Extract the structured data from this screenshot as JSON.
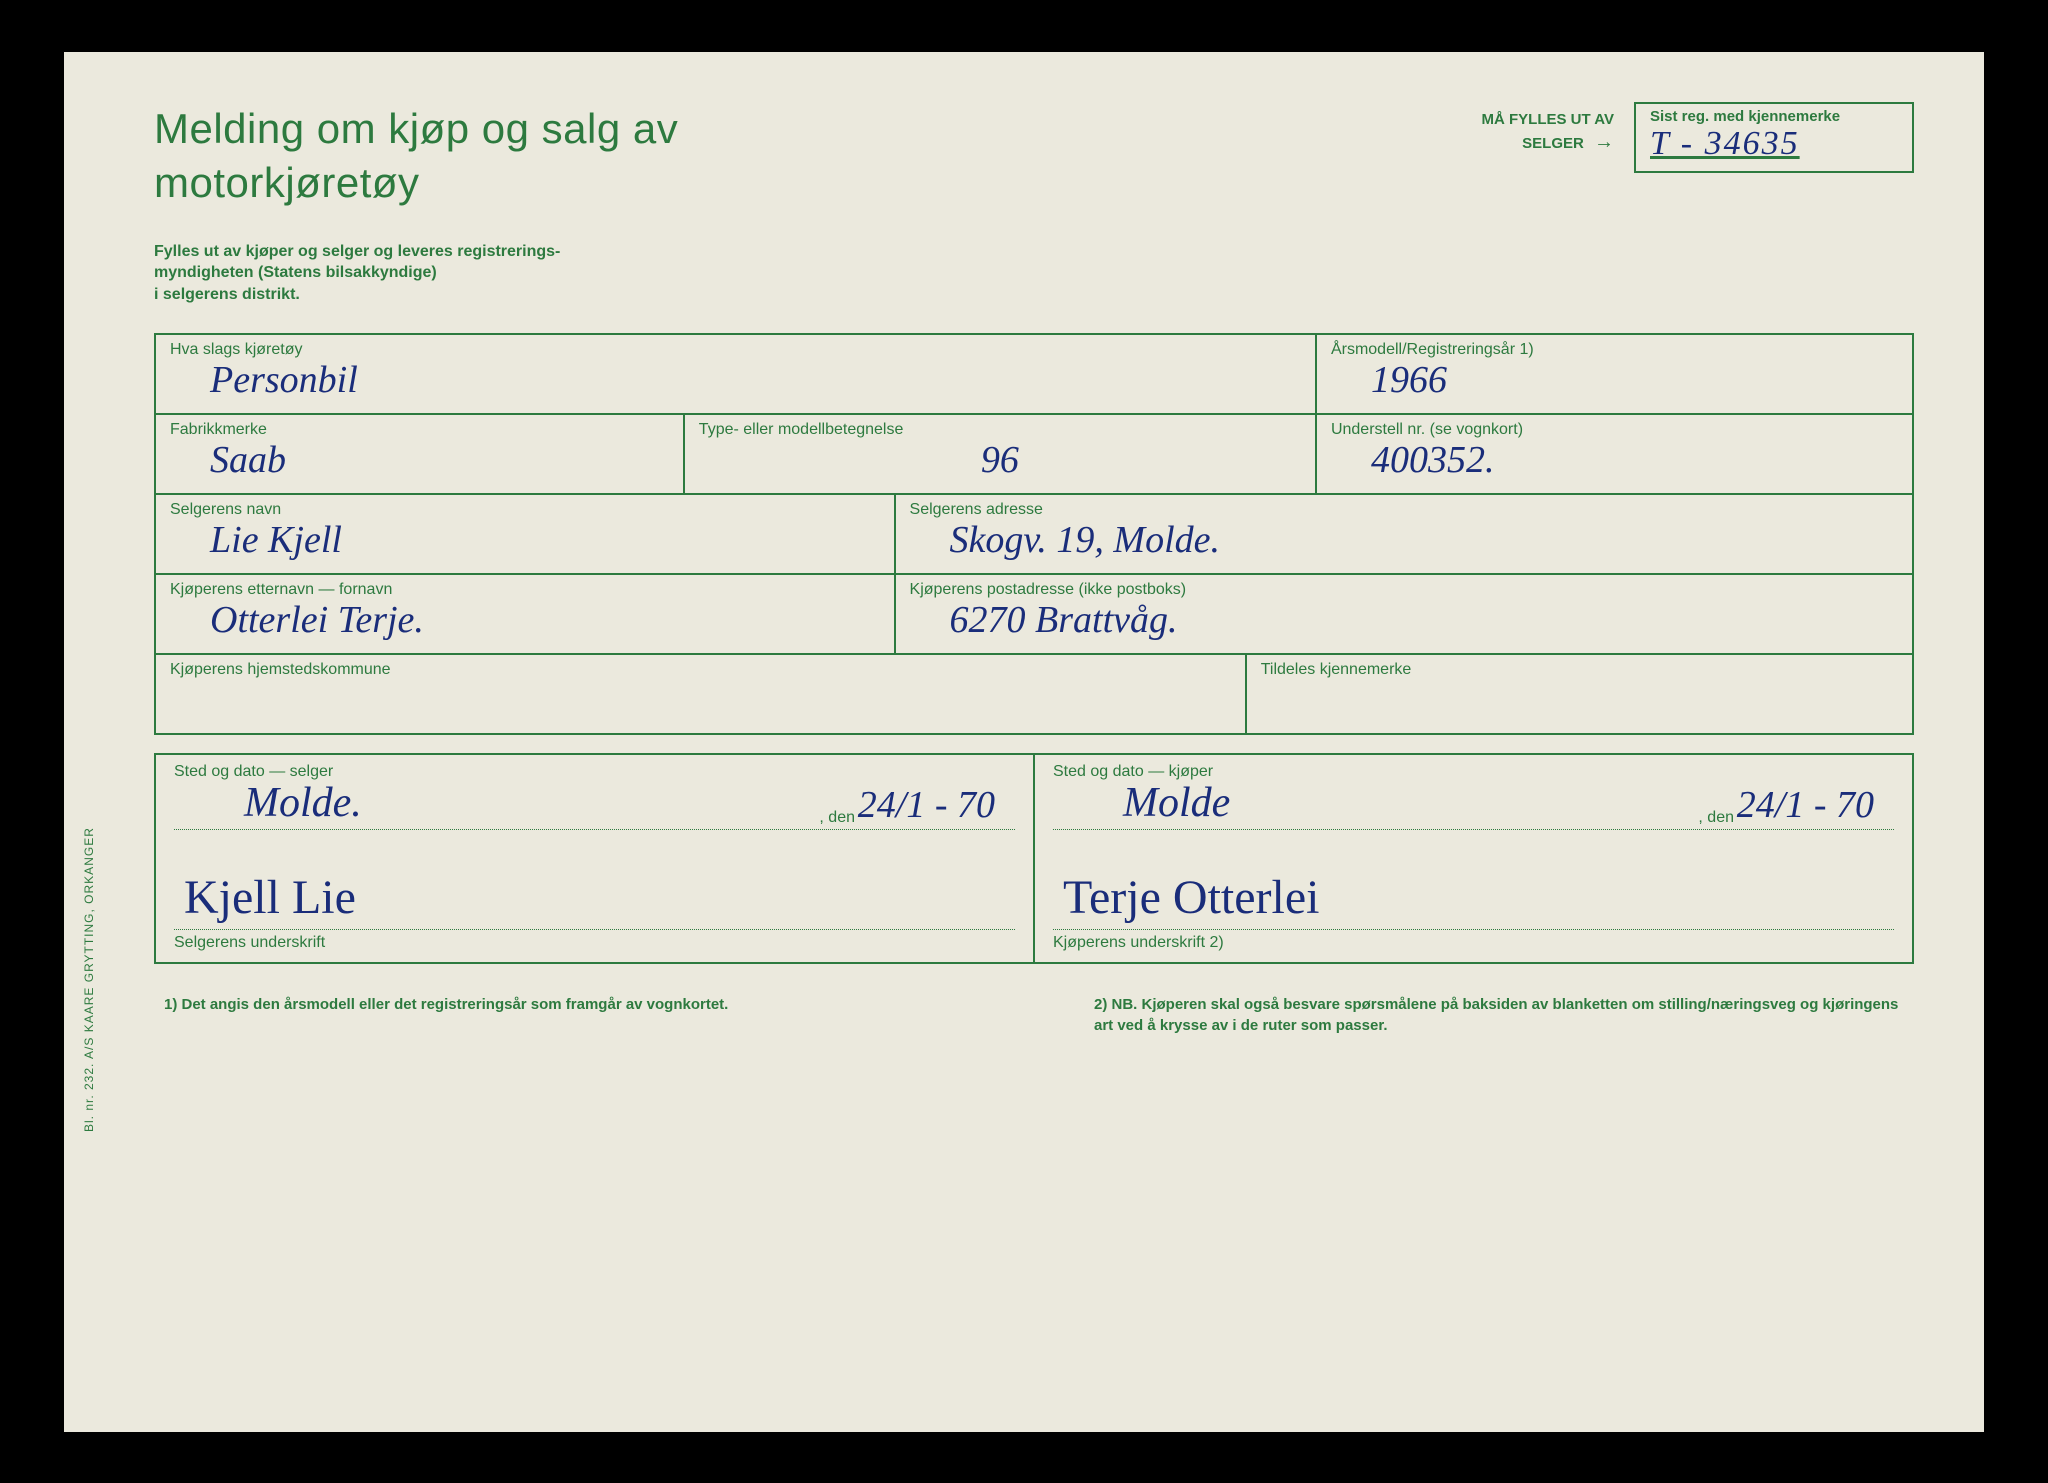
{
  "colors": {
    "paper_bg": "#ebe9dd",
    "print_green": "#2d7a3f",
    "ink_blue": "#1a2d7a",
    "frame_black": "#000000"
  },
  "title_line1": "Melding om kjøp og salg av",
  "title_line2": "motorkjøretøy",
  "reg_instruction_line1": "MÅ FYLLES UT AV",
  "reg_instruction_line2": "SELGER",
  "reg_box_label": "Sist reg. med kjennemerke",
  "reg_box_value": "T - 34635",
  "sub_instruction": "Fylles ut av kjøper og selger og leveres registrerings-\nmyndigheten (Statens bilsakkyndige)\ni selgerens distrikt.",
  "fields": {
    "vehicle_type": {
      "label": "Hva slags kjøretøy",
      "value": "Personbil"
    },
    "year": {
      "label": "Årsmodell/Registreringsår 1)",
      "value": "1966"
    },
    "make": {
      "label": "Fabrikkmerke",
      "value": "Saab"
    },
    "model": {
      "label": "Type- eller modellbetegnelse",
      "value": "96"
    },
    "chassis": {
      "label": "Understell nr. (se vognkort)",
      "value": "400352."
    },
    "seller_name": {
      "label": "Selgerens navn",
      "value": "Lie  Kjell"
    },
    "seller_addr": {
      "label": "Selgerens adresse",
      "value": "Skogv. 19, Molde."
    },
    "buyer_name": {
      "label": "Kjøperens etternavn — fornavn",
      "value": "Otterlei  Terje."
    },
    "buyer_addr": {
      "label": "Kjøperens postadresse (ikke postboks)",
      "value": "6270  Brattvåg."
    },
    "buyer_muni": {
      "label": "Kjøperens hjemstedskommune",
      "value": ""
    },
    "plate": {
      "label": "Tildeles kjennemerke",
      "value": ""
    }
  },
  "sig": {
    "seller": {
      "heading": "Sted og dato — selger",
      "place": "Molde.",
      "den": ", den",
      "date": "24/1 - 70",
      "signature": "Kjell Lie",
      "caption": "Selgerens underskrift"
    },
    "buyer": {
      "heading": "Sted og dato — kjøper",
      "place": "Molde",
      "den": ", den",
      "date": "24/1 - 70",
      "signature": "Terje Otterlei",
      "caption": "Kjøperens underskrift 2)"
    }
  },
  "footnote1": "1) Det angis den årsmodell eller det registreringsår som framgår av vognkortet.",
  "footnote2": "2) NB. Kjøperen skal også besvare spørsmålene på baksiden av blanketten om stilling/næringsveg og kjøringens art ved å krysse av i de ruter som passer.",
  "side_text": "Bl. nr. 232.  A/S KAARE GRYTTING, ORKANGER"
}
